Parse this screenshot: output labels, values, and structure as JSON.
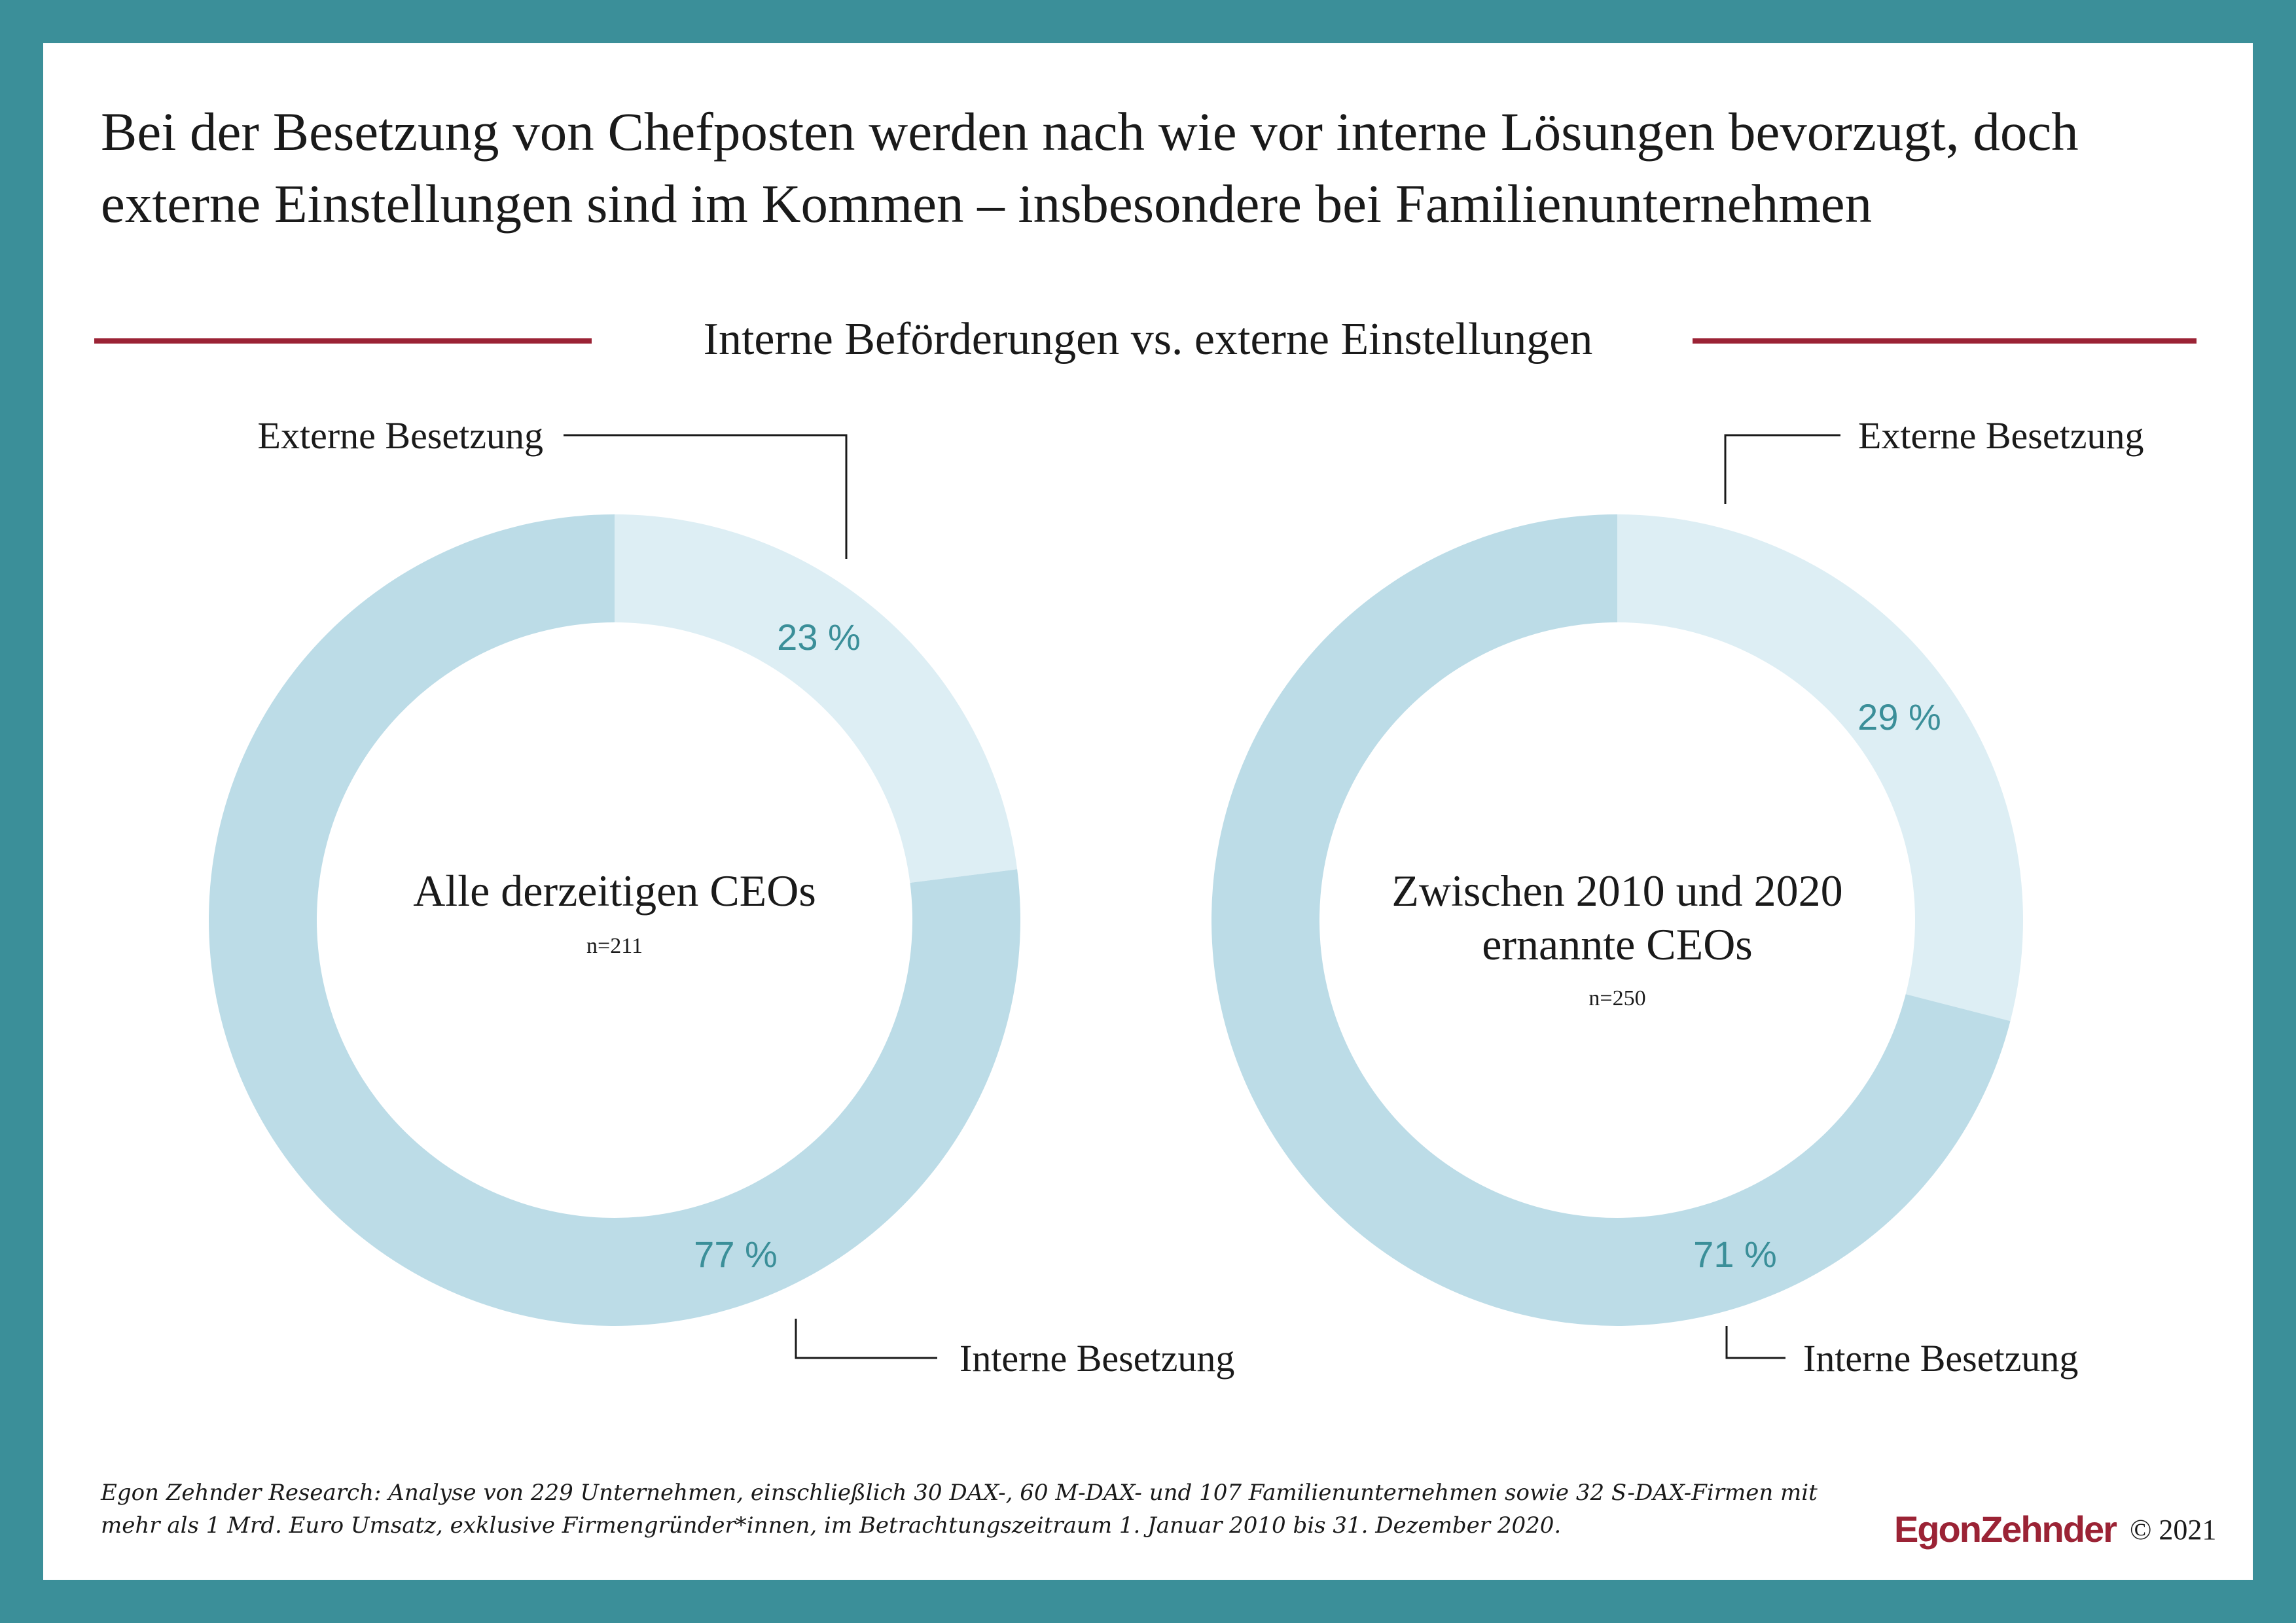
{
  "title": "Bei der Besetzung von Chefposten werden nach wie vor interne Lösungen bevorzugt, doch externe Einstellungen sind im Kommen – insbesondere bei Familienunternehmen",
  "subtitle": "Interne Beförderungen vs. externe Einstellungen",
  "colors": {
    "frame": "#3b8f99",
    "accent": "#9b2335",
    "internal": "#bcdce7",
    "external": "#ddeef4",
    "percent": "#3b8f99"
  },
  "chart_data": [
    {
      "type": "pie",
      "center_title": [
        "Alle derzeitigen CEOs"
      ],
      "n": "n=211",
      "slices": [
        {
          "label": "Externe Besetzung",
          "value": 23,
          "value_label": "23 %"
        },
        {
          "label": "Interne Besetzung",
          "value": 77,
          "value_label": "77 %"
        }
      ]
    },
    {
      "type": "pie",
      "center_title": [
        "Zwischen 2010 und 2020",
        "ernannte CEOs"
      ],
      "n": "n=250",
      "slices": [
        {
          "label": "Externe Besetzung",
          "value": 29,
          "value_label": "29 %"
        },
        {
          "label": "Interne Besetzung",
          "value": 71,
          "value_label": "71 %"
        }
      ]
    }
  ],
  "footnote": "Egon Zehnder Research: Analyse von 229 Unternehmen, einschließlich 30 DAX-, 60 M-DAX- und 107 Familienunternehmen sowie 32 S-DAX-Firmen mit mehr als 1 Mrd. Euro Umsatz, exklusive Firmengründer*innen, im Betrachtungszeitraum 1. Januar 2010 bis 31. Dezember 2020.",
  "logo": "EgonZehnder",
  "copyright": "© 2021"
}
